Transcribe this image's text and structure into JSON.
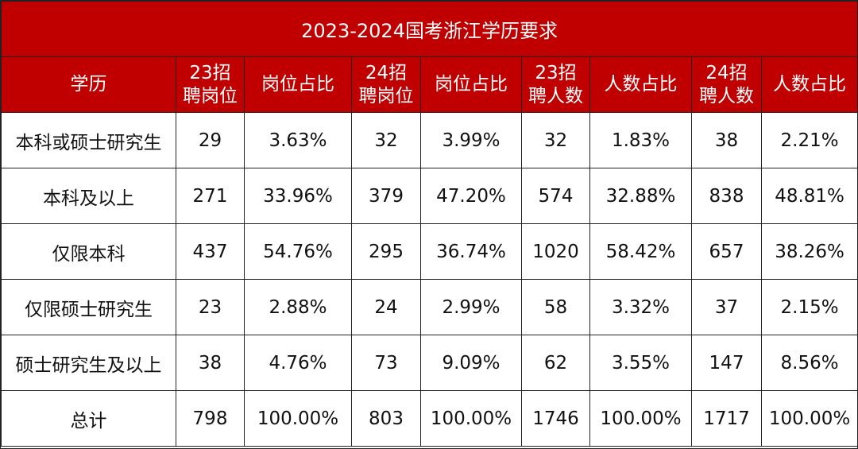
{
  "title": "2023-2024国考浙江学历要求",
  "headers": [
    [
      "学历"
    ],
    [
      "23招",
      "聘岗位"
    ],
    [
      "岗位占比"
    ],
    [
      "24招",
      "聘岗位"
    ],
    [
      "岗位占比"
    ],
    [
      "23招",
      "聘人数"
    ],
    [
      "人数占比"
    ],
    [
      "24招",
      "聘人数"
    ],
    [
      "人数占比"
    ]
  ],
  "rows": [
    [
      "本科或硕士研究生",
      "29",
      "3.63%",
      "32",
      "3.99%",
      "32",
      "1.83%",
      "38",
      "2.21%"
    ],
    [
      "本科及以上",
      "271",
      "33.96%",
      "379",
      "47.20%",
      "574",
      "32.88%",
      "838",
      "48.81%"
    ],
    [
      "仅限本科",
      "437",
      "54.76%",
      "295",
      "36.74%",
      "1020",
      "58.42%",
      "657",
      "38.26%"
    ],
    [
      "仅限硕士研究生",
      "23",
      "2.88%",
      "24",
      "2.99%",
      "58",
      "3.32%",
      "37",
      "2.15%"
    ],
    [
      "硕士研究生及以上",
      "38",
      "4.76%",
      "73",
      "9.09%",
      "62",
      "3.55%",
      "147",
      "8.56%"
    ],
    [
      "总计",
      "798",
      "100.00%",
      "803",
      "100.00%",
      "1746",
      "100.00%",
      "1717",
      "100.00%"
    ]
  ],
  "colors": {
    "header_bg": "#c00000",
    "header_text": "#ffffff",
    "border": "#222222"
  }
}
